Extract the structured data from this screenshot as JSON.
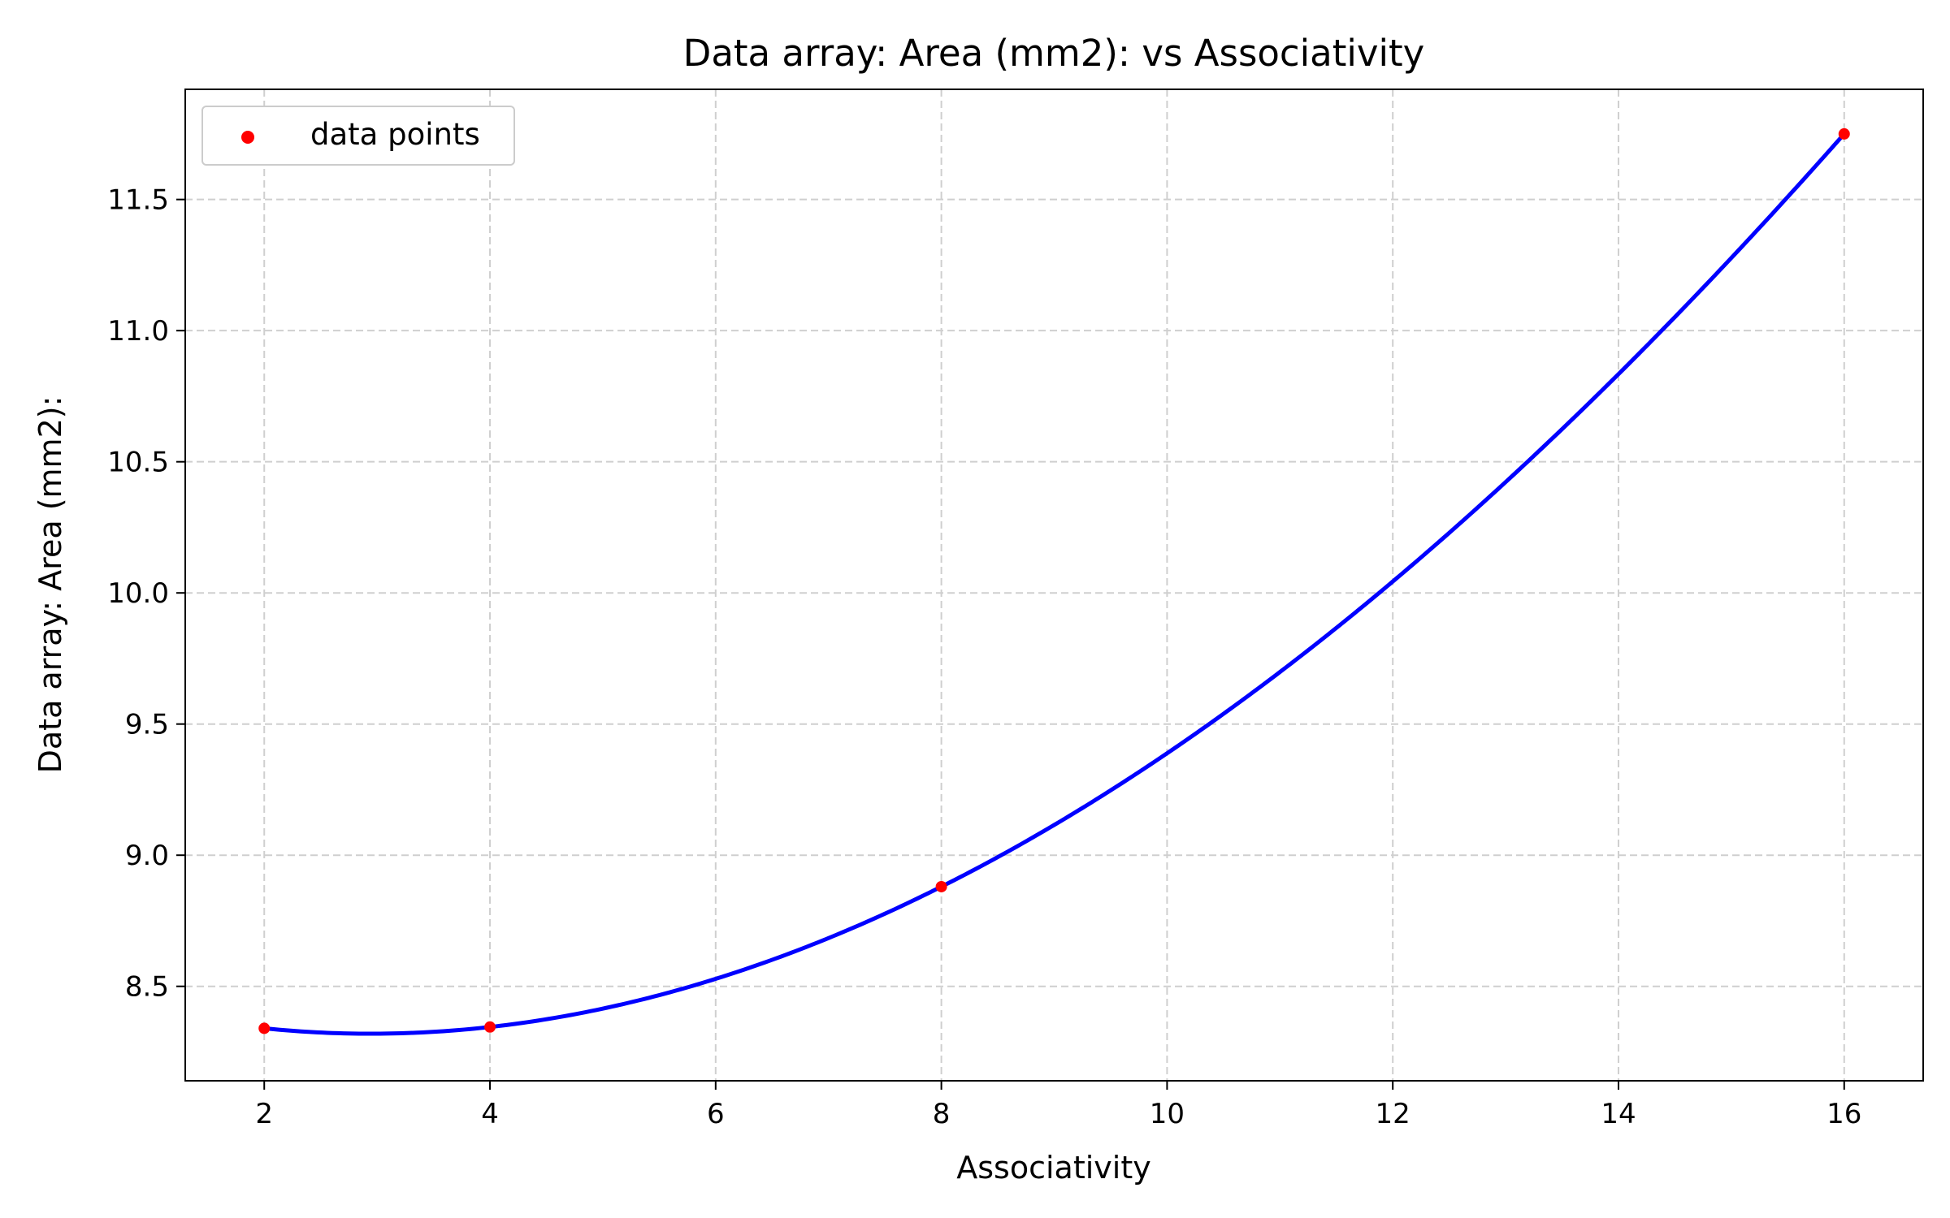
{
  "chart_data": {
    "type": "scatter",
    "title": "Data array: Area (mm2): vs Associativity",
    "xlabel": "Associativity",
    "ylabel": "Data array: Area (mm2):",
    "xlim": [
      1.3,
      16.7
    ],
    "ylim": [
      8.14,
      11.92
    ],
    "xticks": [
      2,
      4,
      6,
      8,
      10,
      12,
      14,
      16
    ],
    "yticks": [
      8.5,
      9.0,
      9.5,
      10.0,
      10.5,
      11.0,
      11.5
    ],
    "xtick_labels": [
      "2",
      "4",
      "6",
      "8",
      "10",
      "12",
      "14",
      "16"
    ],
    "ytick_labels": [
      "8.5",
      "9.0",
      "9.5",
      "10.0",
      "10.5",
      "11.0",
      "11.5"
    ],
    "grid": true,
    "legend_position": "upper-left",
    "series": [
      {
        "name": "data points",
        "kind": "scatter",
        "color": "#ff0000",
        "x": [
          2,
          4,
          8,
          16
        ],
        "y": [
          8.34,
          8.345,
          8.88,
          11.75
        ]
      },
      {
        "kind": "line",
        "color": "#0000ff",
        "x": [
          2,
          4,
          8,
          16
        ],
        "y": [
          8.34,
          8.345,
          8.88,
          11.75
        ]
      }
    ]
  }
}
